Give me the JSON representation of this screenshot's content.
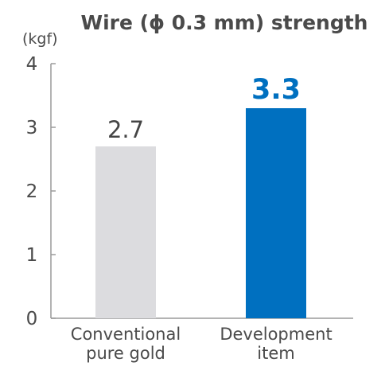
{
  "chart_data": {
    "type": "bar",
    "title": "Wire (ϕ 0.3 mm) strength",
    "unit_label": "(kgf)",
    "xlabel": "",
    "ylabel": "",
    "ylim": [
      0,
      4
    ],
    "yticks": [
      "0",
      "1",
      "2",
      "3",
      "4"
    ],
    "grid": false,
    "categories": [
      [
        "Conventional",
        "pure gold"
      ],
      [
        "Development",
        "item"
      ]
    ],
    "values": [
      2.7,
      3.3
    ],
    "value_labels": [
      "2.7",
      "3.3"
    ],
    "bar_colors": [
      "#dcdcdf",
      "#0070c0"
    ],
    "label_colors": [
      "#444444",
      "#0070c0"
    ]
  }
}
